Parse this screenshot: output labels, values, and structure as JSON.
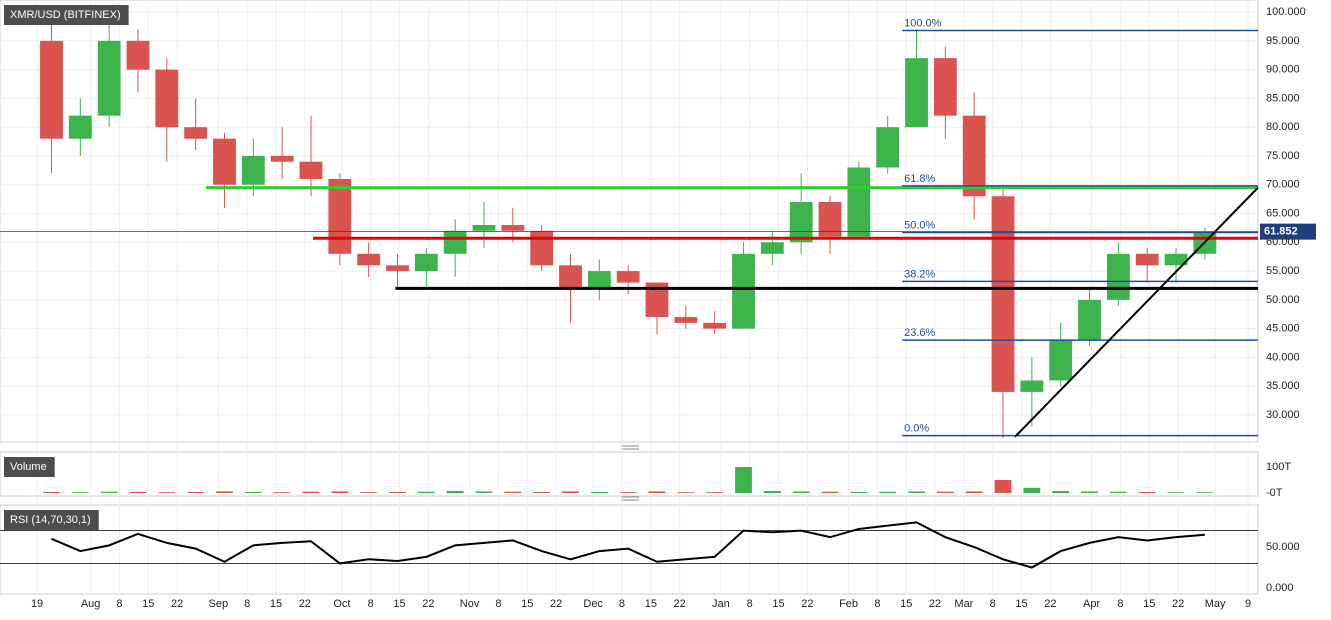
{
  "chart_data": [
    {
      "type": "candlestick",
      "title": "XMR/USD (BITFINEX)",
      "x": [
        0,
        7,
        14,
        21,
        28,
        35,
        42,
        49,
        56,
        63,
        70,
        77,
        84,
        91,
        98,
        105,
        112,
        119,
        126,
        133,
        140,
        147,
        154,
        161,
        168,
        175,
        182,
        189,
        196,
        203,
        210,
        217,
        224,
        231,
        238,
        245,
        252,
        259,
        266,
        273,
        280
      ],
      "open": [
        95,
        78,
        82,
        95,
        90,
        80,
        78,
        70,
        75,
        74,
        71,
        58,
        56,
        55,
        58,
        62,
        63,
        62,
        56,
        52,
        55,
        53,
        47,
        46,
        45,
        58,
        60,
        67,
        61,
        73,
        80,
        92,
        82,
        68,
        34,
        36,
        43,
        50,
        58,
        56,
        58
      ],
      "high": [
        100,
        85,
        99,
        97,
        92,
        85,
        79,
        78,
        80,
        82,
        72,
        60,
        58,
        59,
        64,
        67,
        66,
        63,
        58,
        57,
        56,
        53,
        49,
        48,
        60,
        62,
        72,
        68,
        74,
        82,
        97,
        94,
        86,
        70,
        40,
        46,
        52,
        60,
        59,
        59,
        62.5
      ],
      "low": [
        72,
        75,
        80,
        86,
        74,
        76,
        66,
        68,
        71,
        68,
        56,
        54,
        52,
        52,
        54,
        59,
        60,
        55,
        46,
        50,
        51,
        44,
        45,
        44,
        45,
        56,
        58,
        58,
        61,
        72,
        80,
        78,
        64,
        26,
        28,
        35,
        42,
        49,
        53,
        53,
        57
      ],
      "close": [
        78,
        82,
        95,
        90,
        80,
        78,
        70,
        75,
        74,
        71,
        58,
        56,
        55,
        58,
        62,
        63,
        62,
        56,
        52,
        55,
        53,
        47,
        46,
        45,
        58,
        60,
        67,
        61,
        73,
        80,
        92,
        82,
        68,
        34,
        36,
        43,
        50,
        58,
        56,
        58,
        61.852
      ],
      "up_color": "#3cb44b",
      "down_color": "#d9534f",
      "xlim": [
        -9,
        296.4
      ],
      "xticks": [
        {
          "value": 0,
          "label": "19"
        },
        {
          "value": 13,
          "label": "Aug"
        },
        {
          "value": 20,
          "label": "8"
        },
        {
          "value": 27,
          "label": "15"
        },
        {
          "value": 34,
          "label": "22"
        },
        {
          "value": 44,
          "label": "Sep"
        },
        {
          "value": 51,
          "label": "8"
        },
        {
          "value": 58,
          "label": "15"
        },
        {
          "value": 65,
          "label": "22"
        },
        {
          "value": 74,
          "label": "Oct"
        },
        {
          "value": 81,
          "label": "8"
        },
        {
          "value": 88,
          "label": "15"
        },
        {
          "value": 95,
          "label": "22"
        },
        {
          "value": 105,
          "label": "Nov"
        },
        {
          "value": 112,
          "label": "8"
        },
        {
          "value": 119,
          "label": "15"
        },
        {
          "value": 126,
          "label": "22"
        },
        {
          "value": 135,
          "label": "Dec"
        },
        {
          "value": 142,
          "label": "8"
        },
        {
          "value": 149,
          "label": "15"
        },
        {
          "value": 156,
          "label": "22"
        },
        {
          "value": 166,
          "label": "Jan"
        },
        {
          "value": 173,
          "label": "8"
        },
        {
          "value": 180,
          "label": "15"
        },
        {
          "value": 187,
          "label": "22"
        },
        {
          "value": 197,
          "label": "Feb"
        },
        {
          "value": 204,
          "label": "8"
        },
        {
          "value": 211,
          "label": "15"
        },
        {
          "value": 218,
          "label": "22"
        },
        {
          "value": 225,
          "label": "Mar"
        },
        {
          "value": 232,
          "label": "8"
        },
        {
          "value": 239,
          "label": "15"
        },
        {
          "value": 246,
          "label": "22"
        },
        {
          "value": 256,
          "label": "Apr"
        },
        {
          "value": 263,
          "label": "8"
        },
        {
          "value": 270,
          "label": "15"
        },
        {
          "value": 277,
          "label": "22"
        },
        {
          "value": 286,
          "label": "May"
        },
        {
          "value": 294,
          "label": "9"
        }
      ],
      "ylim": [
        25.3,
        102.1
      ],
      "yticks": [
        {
          "value": 30,
          "label": "30.000"
        },
        {
          "value": 35,
          "label": "35.000"
        },
        {
          "value": 40,
          "label": "40.000"
        },
        {
          "value": 45,
          "label": "45.000"
        },
        {
          "value": 50,
          "label": "50.000"
        },
        {
          "value": 55,
          "label": "55.000"
        },
        {
          "value": 60,
          "label": "60.000"
        },
        {
          "value": 65,
          "label": "65.000"
        },
        {
          "value": 70,
          "label": "70.000"
        },
        {
          "value": 75,
          "label": "75.000"
        },
        {
          "value": 80,
          "label": "80.000"
        },
        {
          "value": 85,
          "label": "85.000"
        },
        {
          "value": 90,
          "label": "90.000"
        },
        {
          "value": 95,
          "label": "95.000"
        },
        {
          "value": 100,
          "label": "100.000"
        }
      ],
      "grid": true,
      "last_price": 61.852,
      "last_price_label": "61.852",
      "last_price_color": "#1f3f7a",
      "levels": [
        {
          "value": 69.5,
          "x_start": 41,
          "color": "#33cc33"
        },
        {
          "value": 60.7,
          "x_start": 67,
          "color": "#e8000b"
        },
        {
          "value": 52,
          "x_start": 87,
          "color": "#000000"
        }
      ],
      "fib": {
        "x_start": 210,
        "color": "#1f4e9a",
        "levels": [
          {
            "value": 96.8,
            "label": "100.0%"
          },
          {
            "value": 69.8,
            "label": "61.8%"
          },
          {
            "value": 61.7,
            "label": "50.0%"
          },
          {
            "value": 53.2,
            "label": "38.2%"
          },
          {
            "value": 43.0,
            "label": "23.6%"
          },
          {
            "value": 26.4,
            "label": "0.0%"
          }
        ]
      },
      "trendline": {
        "x": [
          237.4,
          296.4
        ],
        "y": [
          26.2,
          69.5
        ]
      }
    },
    {
      "type": "bar",
      "title": "Volume",
      "values": [
        4,
        3,
        5,
        4,
        3,
        4,
        6,
        4,
        3,
        5,
        6,
        3,
        4,
        5,
        8,
        6,
        5,
        4,
        6,
        4,
        3,
        6,
        3,
        3,
        100,
        8,
        6,
        5,
        4,
        5,
        6,
        5,
        6,
        50,
        20,
        8,
        6,
        5,
        4,
        3,
        3
      ],
      "ylim": [
        -11.5,
        157.7
      ],
      "yticks": [
        {
          "value": 0,
          "label": "-0T"
        },
        {
          "value": 100,
          "label": "100T"
        }
      ]
    },
    {
      "type": "line",
      "title": "RSI (14,70,30,1)",
      "values": [
        60,
        45,
        52,
        66,
        55,
        48,
        32,
        52,
        55,
        57,
        30,
        35,
        33,
        38,
        52,
        55,
        58,
        45,
        35,
        45,
        48,
        32,
        35,
        38,
        70,
        68,
        70,
        62,
        72,
        76,
        80,
        62,
        50,
        35,
        25,
        45,
        55,
        62,
        58,
        62,
        65
      ],
      "color": "#000000",
      "levels": [
        70,
        30
      ],
      "ylim": [
        -7.3,
        101.2
      ],
      "yticks": [
        {
          "value": 0,
          "label": "0.000"
        },
        {
          "value": 50,
          "label": "50.000"
        }
      ]
    }
  ]
}
